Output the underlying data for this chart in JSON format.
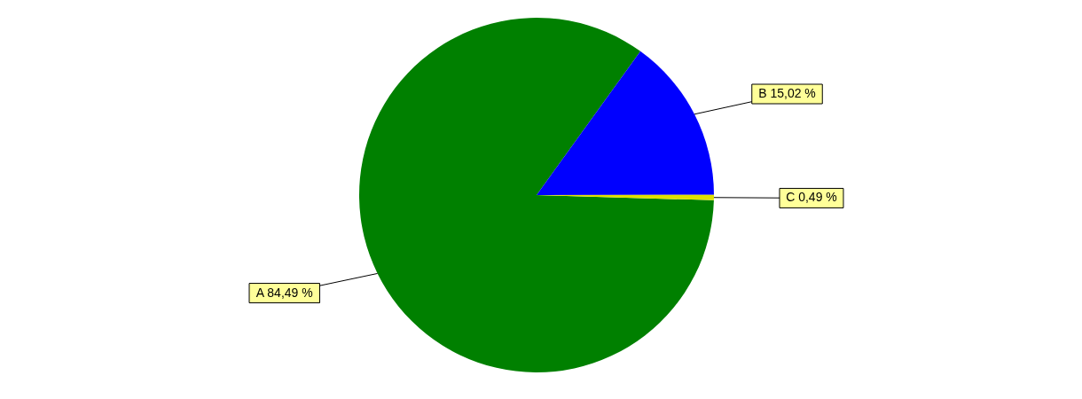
{
  "chart_data": {
    "type": "pie",
    "categories": [
      "A",
      "B",
      "C"
    ],
    "values": [
      84.49,
      15.02,
      0.49
    ],
    "value_labels": [
      "84,49 %",
      "15,02 %",
      "0,49 %"
    ],
    "colors": [
      "#008000",
      "#0000ff",
      "#e0e000"
    ],
    "legend": false
  }
}
